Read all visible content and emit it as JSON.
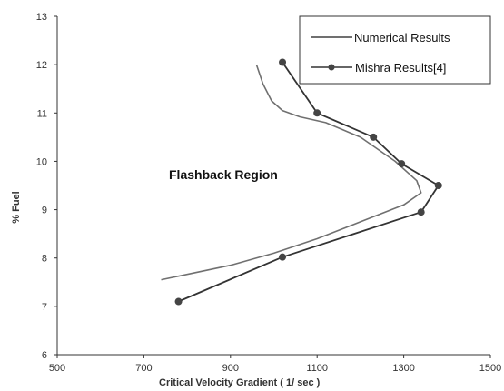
{
  "chart_data": {
    "type": "line",
    "title": "",
    "xlabel": "Critical Velocity Gradient ( 1/ sec )",
    "ylabel": "% Fuel",
    "xlim": [
      500,
      1500
    ],
    "ylim": [
      6,
      13
    ],
    "xticks": [
      500,
      700,
      900,
      1100,
      1300,
      1500
    ],
    "yticks": [
      6,
      7,
      8,
      9,
      10,
      11,
      12,
      13
    ],
    "grid": false,
    "legend_position": "top-right",
    "annotation": "Flashback Region",
    "series": [
      {
        "name": "Numerical Results",
        "color": "#707070",
        "marker": "none",
        "x": [
          960,
          975,
          995,
          1020,
          1060,
          1120,
          1200,
          1280,
          1330,
          1340,
          1300,
          1200,
          1100,
          1000,
          900,
          820,
          740
        ],
        "y": [
          12.0,
          11.6,
          11.25,
          11.05,
          10.92,
          10.8,
          10.5,
          10.0,
          9.6,
          9.35,
          9.1,
          8.75,
          8.4,
          8.1,
          7.85,
          7.7,
          7.55
        ]
      },
      {
        "name": "Mishra Results[4]",
        "color": "#333333",
        "marker": "circle",
        "x": [
          1020,
          1100,
          1230,
          1295,
          1380,
          1340,
          1020,
          780
        ],
        "y": [
          12.05,
          11.0,
          10.5,
          9.95,
          9.5,
          8.95,
          8.02,
          7.1
        ]
      }
    ]
  }
}
